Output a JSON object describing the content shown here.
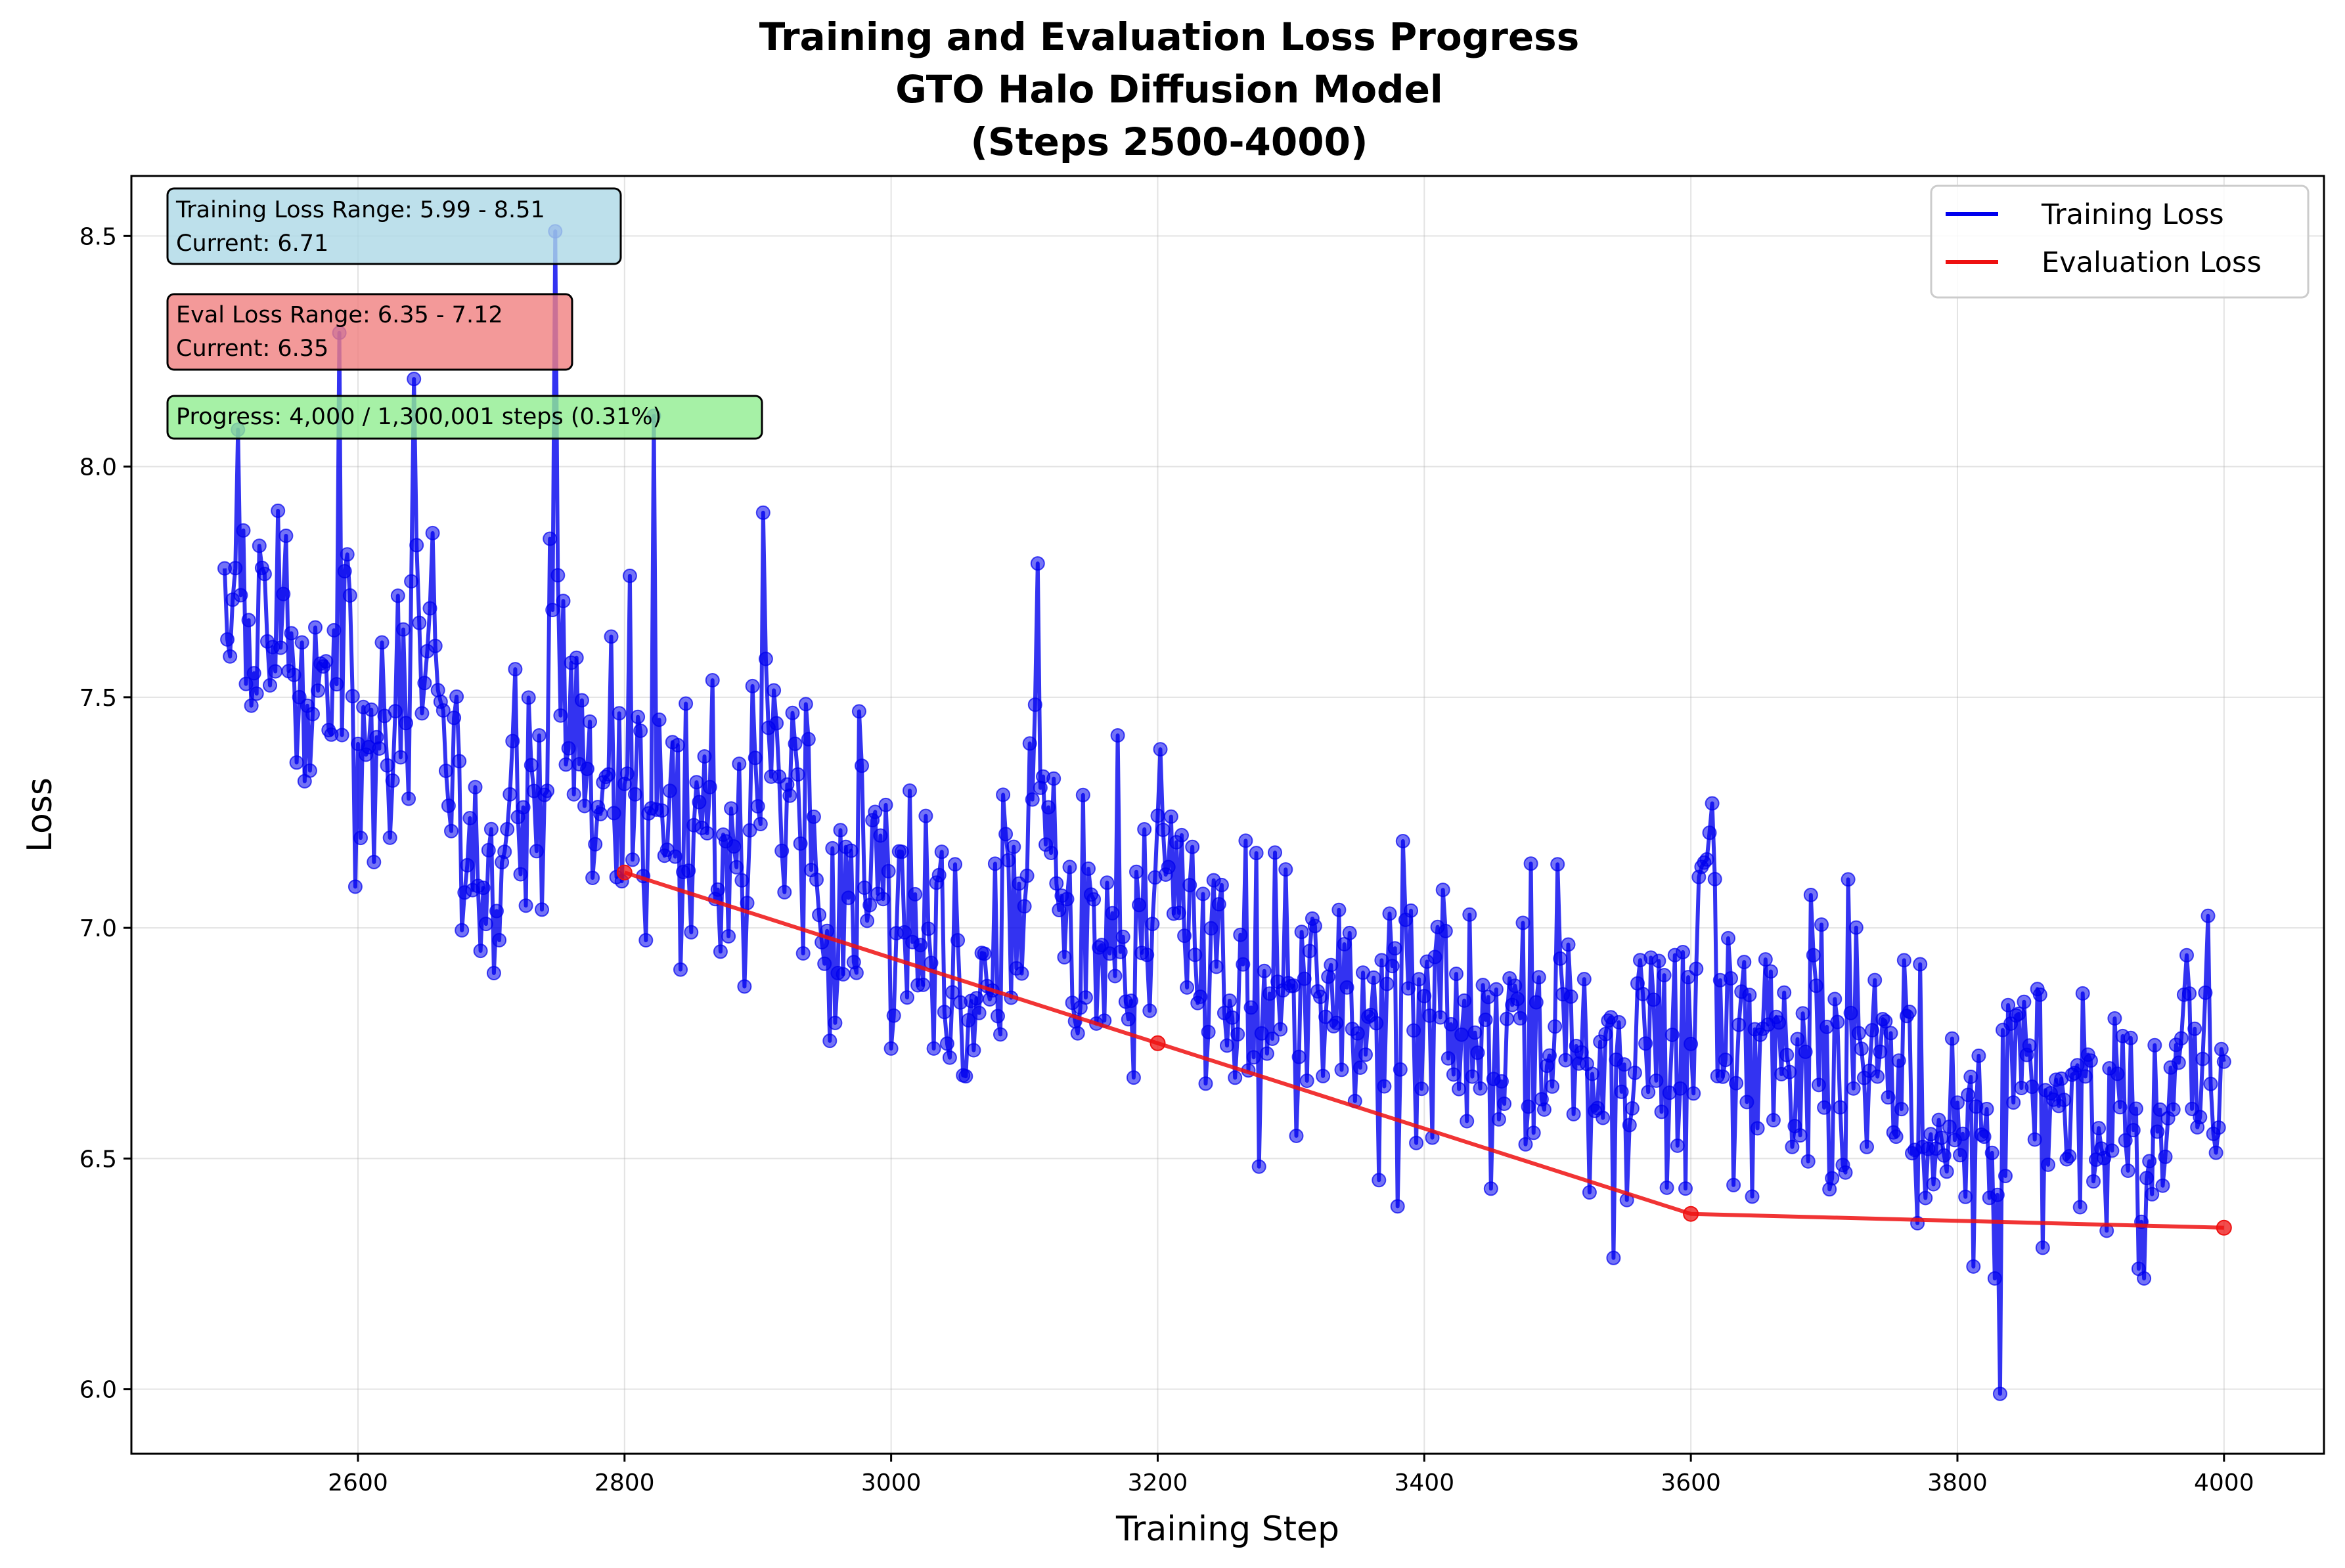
{
  "chart_data": {
    "type": "line",
    "title_lines": [
      "Training and Evaluation Loss Progress",
      "GTO Halo Diffusion Model",
      "(Steps 2500-4000)"
    ],
    "xlabel": "Training Step",
    "ylabel": "Loss",
    "xlim": [
      2430,
      4075
    ],
    "ylim": [
      5.86,
      8.63
    ],
    "xticks": [
      2600,
      2800,
      3000,
      3200,
      3400,
      3600,
      3800,
      4000
    ],
    "yticks": [
      6.0,
      6.5,
      7.0,
      7.5,
      8.0,
      8.5
    ],
    "xtick_labels": [
      "2600",
      "2800",
      "3000",
      "3200",
      "3400",
      "3600",
      "3800",
      "4000"
    ],
    "ytick_labels": [
      "6.0",
      "6.5",
      "7.0",
      "7.5",
      "8.0",
      "8.5"
    ],
    "grid": true,
    "legend_position": "top-right",
    "series": [
      {
        "name": "Training Loss",
        "color": "#0000ee",
        "x_start": 2500,
        "x_end": 4000,
        "x_step": 2,
        "anchor_x": [
          2500,
          2510,
          2520,
          2540,
          2560,
          2580,
          2586,
          2600,
          2620,
          2640,
          2642,
          2660,
          2680,
          2690,
          2700,
          2720,
          2740,
          2748,
          2760,
          2780,
          2800,
          2820,
          2840,
          2860,
          2880,
          2900,
          2904,
          2920,
          2940,
          2960,
          2980,
          3000,
          3020,
          3040,
          3060,
          3080,
          3100,
          3110,
          3120,
          3140,
          3160,
          3180,
          3200,
          3220,
          3240,
          3260,
          3280,
          3300,
          3320,
          3340,
          3360,
          3380,
          3400,
          3420,
          3440,
          3460,
          3480,
          3500,
          3520,
          3540,
          3560,
          3580,
          3600,
          3616,
          3620,
          3640,
          3660,
          3680,
          3700,
          3720,
          3740,
          3760,
          3780,
          3800,
          3820,
          3832,
          3840,
          3860,
          3880,
          3900,
          3920,
          3940,
          3960,
          3972,
          3980,
          4000
        ],
        "anchor_y": [
          7.6,
          7.62,
          7.55,
          7.6,
          7.55,
          7.55,
          7.7,
          7.48,
          7.45,
          7.6,
          7.8,
          7.48,
          7.25,
          7.2,
          7.18,
          7.3,
          7.3,
          7.9,
          7.4,
          7.28,
          7.35,
          7.35,
          7.25,
          7.15,
          7.15,
          7.2,
          7.6,
          7.3,
          7.2,
          7.05,
          7.1,
          7.0,
          6.95,
          6.95,
          6.9,
          6.95,
          7.05,
          7.4,
          7.1,
          6.95,
          6.95,
          6.95,
          7.2,
          7.05,
          6.9,
          6.85,
          6.9,
          6.85,
          6.8,
          6.8,
          6.8,
          6.85,
          6.85,
          6.7,
          6.75,
          6.75,
          6.8,
          6.75,
          6.75,
          6.7,
          6.7,
          6.7,
          6.75,
          7.3,
          6.85,
          6.8,
          6.7,
          6.7,
          6.65,
          6.7,
          6.75,
          6.7,
          6.6,
          6.6,
          6.55,
          6.3,
          6.75,
          6.75,
          6.7,
          6.6,
          6.6,
          6.5,
          6.6,
          7.0,
          6.7,
          6.6
        ],
        "spikes": [
          [
            2510,
            8.08
          ],
          [
            2586,
            8.29
          ],
          [
            2642,
            8.19
          ],
          [
            2748,
            8.51
          ],
          [
            2822,
            8.11
          ],
          [
            2904,
            7.9
          ],
          [
            3110,
            7.79
          ],
          [
            3832,
            5.99
          ]
        ],
        "range_min": 5.99,
        "range_max": 8.51,
        "current": 6.71
      },
      {
        "name": "Evaluation Loss",
        "color": "#ee1111",
        "x": [
          2800,
          3200,
          3600,
          4000
        ],
        "y": [
          7.12,
          6.75,
          6.38,
          6.35
        ]
      }
    ],
    "annotations": [
      {
        "text_lines": [
          "Training Loss Range: 5.99 - 8.51",
          "Current: 6.71"
        ],
        "color": "#add8e6"
      },
      {
        "text_lines": [
          "Eval Loss Range: 6.35 - 7.12",
          "Current: 6.35"
        ],
        "color": "#f08080"
      },
      {
        "text_lines": [
          "Progress: 4,000 / 1,300,001 steps (0.31%)"
        ],
        "color": "#90ee90"
      }
    ]
  }
}
